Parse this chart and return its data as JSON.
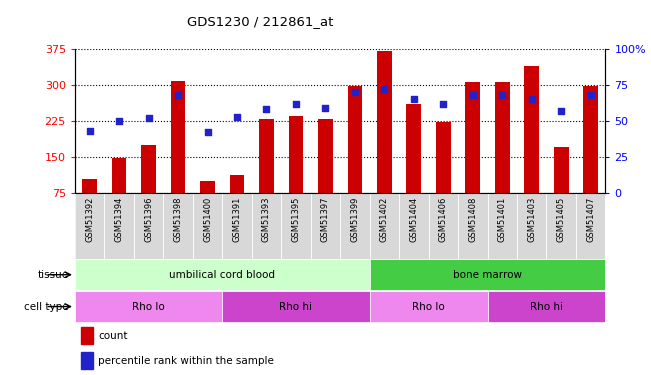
{
  "title": "GDS1230 / 212861_at",
  "samples": [
    "GSM51392",
    "GSM51394",
    "GSM51396",
    "GSM51398",
    "GSM51400",
    "GSM51391",
    "GSM51393",
    "GSM51395",
    "GSM51397",
    "GSM51399",
    "GSM51402",
    "GSM51404",
    "GSM51406",
    "GSM51408",
    "GSM51401",
    "GSM51403",
    "GSM51405",
    "GSM51407"
  ],
  "counts": [
    105,
    148,
    175,
    308,
    100,
    112,
    230,
    235,
    230,
    297,
    370,
    260,
    222,
    305,
    305,
    340,
    170,
    297
  ],
  "percentile_ranks": [
    43,
    50,
    52,
    68,
    42,
    53,
    58,
    62,
    59,
    70,
    72,
    65,
    62,
    68,
    68,
    65,
    57,
    68
  ],
  "ylim_left": [
    75,
    375
  ],
  "ylim_right": [
    0,
    100
  ],
  "yticks_left": [
    75,
    150,
    225,
    300,
    375
  ],
  "yticks_right": [
    0,
    25,
    50,
    75,
    100
  ],
  "bar_color": "#cc0000",
  "dot_color": "#2222cc",
  "tissue_groups": [
    {
      "label": "umbilical cord blood",
      "start": 0,
      "end": 10,
      "color": "#ccffcc"
    },
    {
      "label": "bone marrow",
      "start": 10,
      "end": 18,
      "color": "#44cc44"
    }
  ],
  "cell_type_groups": [
    {
      "label": "Rho lo",
      "start": 0,
      "end": 5,
      "color": "#ee88ee"
    },
    {
      "label": "Rho hi",
      "start": 5,
      "end": 10,
      "color": "#cc44cc"
    },
    {
      "label": "Rho lo",
      "start": 10,
      "end": 14,
      "color": "#ee88ee"
    },
    {
      "label": "Rho hi",
      "start": 14,
      "end": 18,
      "color": "#cc44cc"
    }
  ],
  "legend_count_color": "#cc0000",
  "legend_dot_color": "#2222cc",
  "legend_count_label": "count",
  "legend_dot_label": "percentile rank within the sample",
  "tissue_label": "tissue",
  "cell_type_label": "cell type",
  "xlabel_bg": "#cccccc"
}
